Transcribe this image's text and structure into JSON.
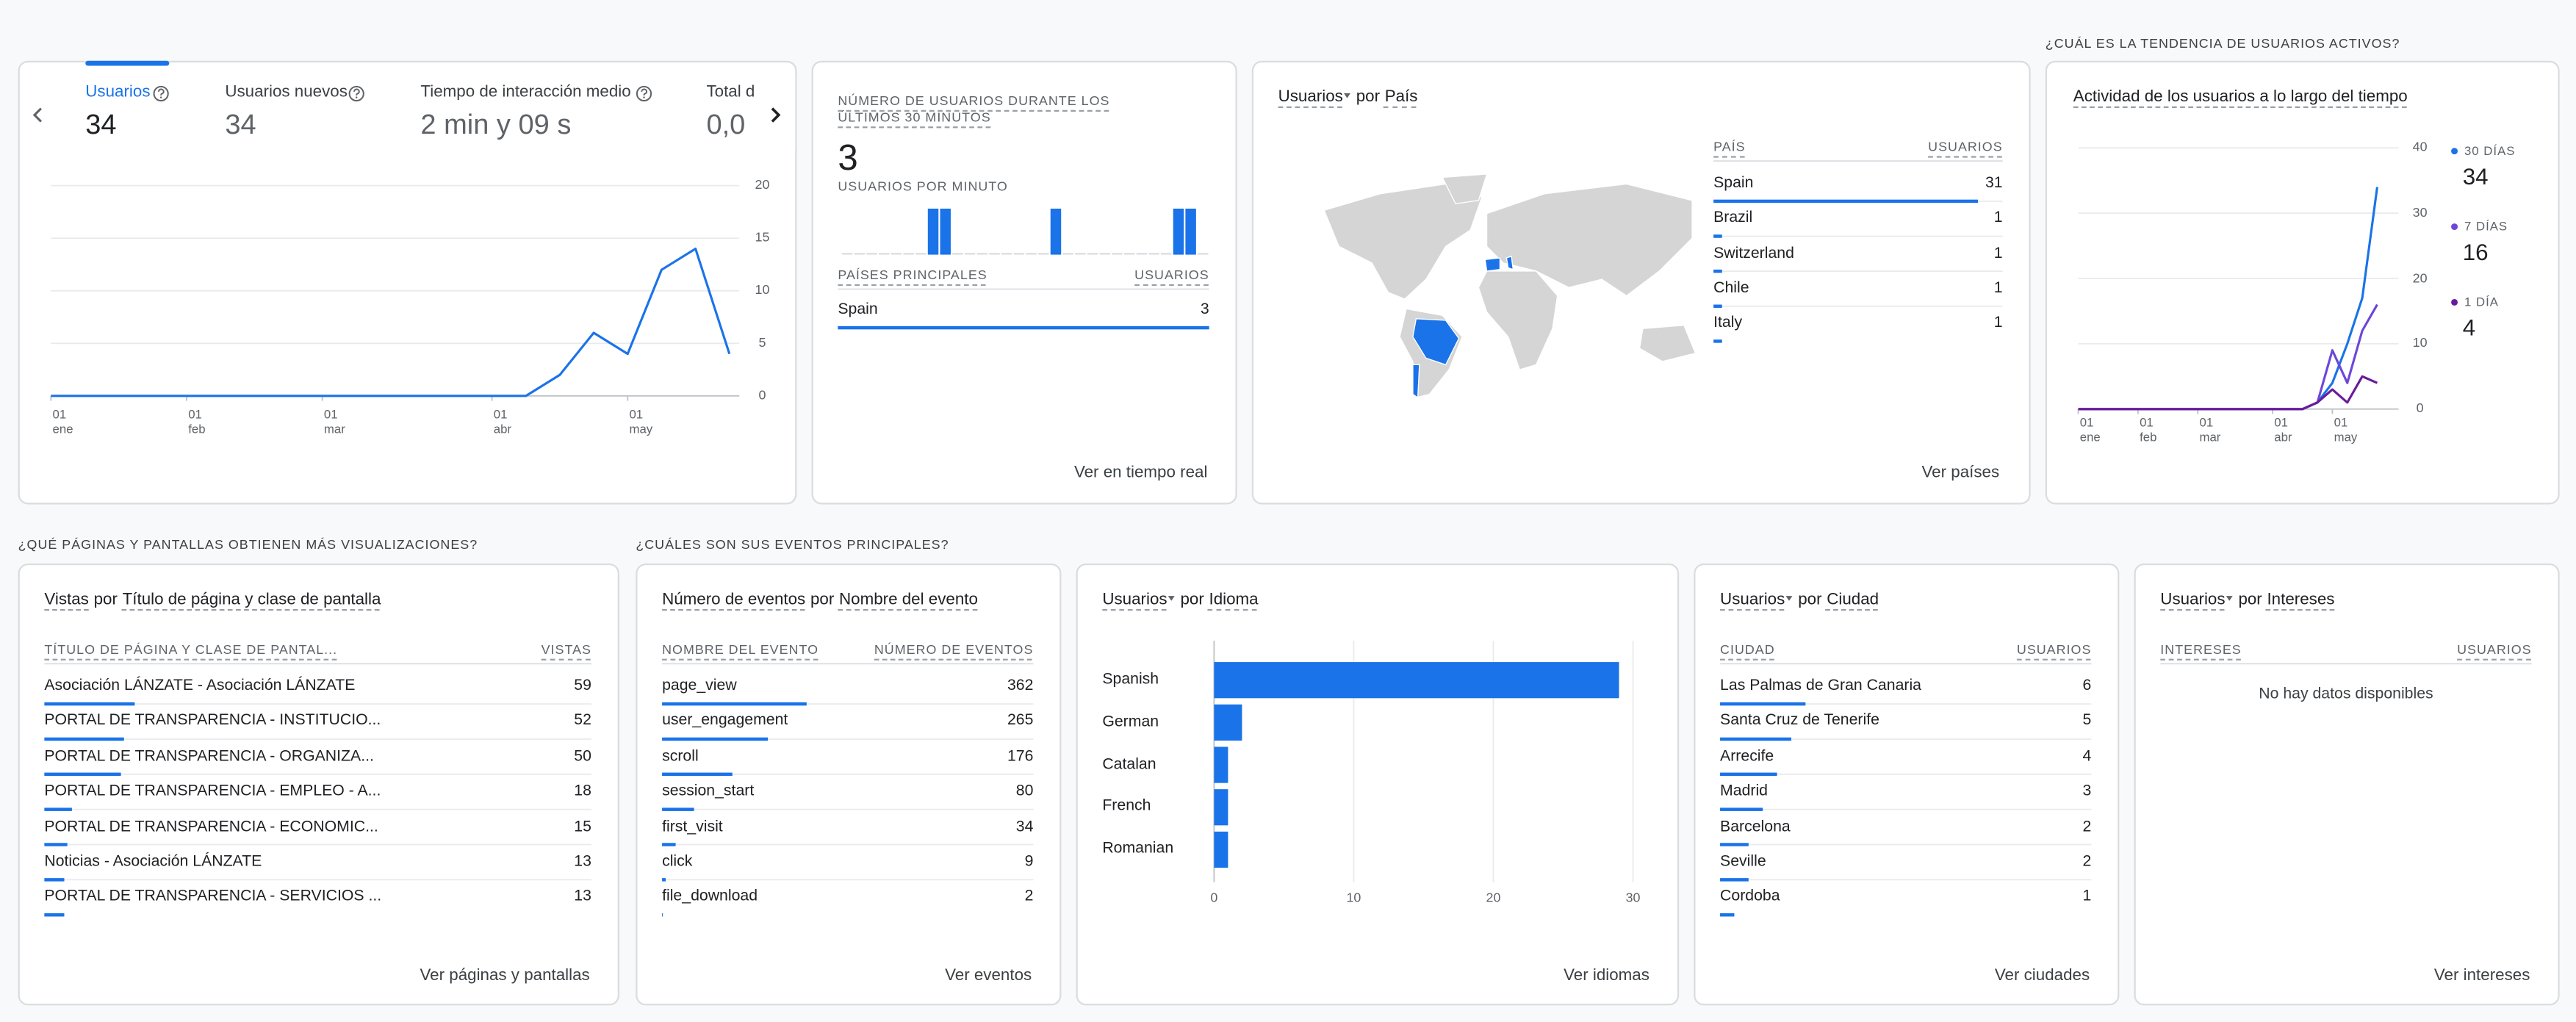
{
  "overview": {
    "tabs": [
      {
        "label": "Usuarios",
        "value": 34
      },
      {
        "label": "Usuarios nuevos",
        "value": 34
      },
      {
        "label": "Tiempo de interacción medio",
        "value": "2 min y 09 s"
      },
      {
        "label": "Total d",
        "value": "0,0"
      }
    ],
    "chart": {
      "type": "line",
      "categories": [
        "01\nene",
        null,
        null,
        null,
        "01\nfeb",
        null,
        null,
        null,
        "01\nmar",
        null,
        null,
        null,
        null,
        "01\nabr",
        null,
        null,
        null,
        "01\nmay",
        null,
        null,
        null
      ],
      "values": [
        0,
        0,
        0,
        0,
        0,
        0,
        0,
        0,
        0,
        0,
        0,
        0,
        0,
        0,
        0,
        2,
        6,
        4,
        12,
        14,
        4
      ],
      "color": "#1a73e8",
      "ylim": [
        0,
        20
      ],
      "yticks": [
        0,
        5,
        10,
        15,
        20
      ],
      "grid": true
    }
  },
  "realtime": {
    "title": "NÚMERO DE USUARIOS DURANTE LOS ÚLTIMOS 30 MINUTOS",
    "total": 3,
    "per_minute_label": "USUARIOS POR MINUTO",
    "per_minute": {
      "type": "bar",
      "color": "#1a73e8",
      "values": [
        0,
        0,
        0,
        0,
        0,
        0,
        0,
        1,
        1,
        0,
        0,
        0,
        0,
        0,
        0,
        0,
        0,
        1,
        0,
        0,
        0,
        0,
        0,
        0,
        0,
        0,
        0,
        1,
        1,
        0
      ]
    },
    "table": {
      "columns": [
        "PAÍSES PRINCIPALES",
        "USUARIOS"
      ],
      "rows": [
        [
          "Spain",
          3
        ]
      ]
    },
    "link": "Ver en tiempo real"
  },
  "countries": {
    "title": {
      "metric": "Usuarios",
      "menu": true,
      "connector": "por",
      "dimension": "País"
    },
    "table": {
      "columns": [
        "PAÍS",
        "USUARIOS"
      ],
      "rows": [
        [
          "Spain",
          31
        ],
        [
          "Brazil",
          1
        ],
        [
          "Switzerland",
          1
        ],
        [
          "Chile",
          1
        ],
        [
          "Italy",
          1
        ]
      ]
    },
    "link": "Ver países"
  },
  "trend": {
    "heading": "¿CUÁL ES LA TENDENCIA DE USUARIOS ACTIVOS?",
    "chart": {
      "type": "line",
      "title": "Actividad de los usuarios a lo largo del tiempo",
      "categories": [
        "01\nene",
        null,
        null,
        null,
        "01\nfeb",
        null,
        null,
        null,
        "01\nmar",
        null,
        null,
        null,
        null,
        "01\nabr",
        null,
        null,
        null,
        "01\nmay",
        null,
        null,
        null
      ],
      "series": [
        {
          "name": "30 DÍAS",
          "value": 34,
          "color": "#1a73e8",
          "values": [
            0,
            0,
            0,
            0,
            0,
            0,
            0,
            0,
            0,
            0,
            0,
            0,
            0,
            0,
            0,
            0,
            1,
            4,
            10,
            17,
            34
          ]
        },
        {
          "name": "7 DÍAS",
          "value": 16,
          "color": "#6c47d9",
          "values": [
            0,
            0,
            0,
            0,
            0,
            0,
            0,
            0,
            0,
            0,
            0,
            0,
            0,
            0,
            0,
            0,
            1,
            9,
            4,
            12,
            16
          ]
        },
        {
          "name": "1 DÍA",
          "value": 4,
          "color": "#6a1b9a",
          "values": [
            0,
            0,
            0,
            0,
            0,
            0,
            0,
            0,
            0,
            0,
            0,
            0,
            0,
            0,
            0,
            0,
            1,
            3,
            1,
            5,
            4
          ]
        }
      ],
      "ylim": [
        0,
        40
      ],
      "yticks": [
        0,
        10,
        20,
        30,
        40
      ],
      "grid": true
    }
  },
  "pages_heading": "¿QUÉ PÁGINAS Y PANTALLAS OBTIENEN MÁS VISUALIZACIONES?",
  "events_heading": "¿CUÁLES SON SUS EVENTOS PRINCIPALES?",
  "pages": {
    "title": {
      "metric": "Vistas",
      "menu": false,
      "connector": "por",
      "dimension": "Título de página y clase de pantalla"
    },
    "table": {
      "columns": [
        "TÍTULO DE PÁGINA Y CLASE DE PANTAL...",
        "VISTAS"
      ],
      "rows": [
        [
          "Asociación LÁNZATE - Asociación LÁNZATE",
          59
        ],
        [
          "PORTAL DE TRANSPARENCIA - INSTITUCIO...",
          52
        ],
        [
          "PORTAL DE TRANSPARENCIA - ORGANIZA...",
          50
        ],
        [
          "PORTAL DE TRANSPARENCIA - EMPLEO - A...",
          18
        ],
        [
          "PORTAL DE TRANSPARENCIA - ECONOMIC...",
          15
        ],
        [
          "Noticias - Asociación LÁNZATE",
          13
        ],
        [
          "PORTAL DE TRANSPARENCIA - SERVICIOS ...",
          13
        ]
      ]
    },
    "link": "Ver páginas y pantallas"
  },
  "events": {
    "title": {
      "metric": "Número de eventos",
      "menu": false,
      "connector": "por",
      "dimension": "Nombre del evento"
    },
    "table": {
      "columns": [
        "NOMBRE DEL EVENTO",
        "NÚMERO DE EVENTOS"
      ],
      "rows": [
        [
          "page_view",
          362
        ],
        [
          "user_engagement",
          265
        ],
        [
          "scroll",
          176
        ],
        [
          "session_start",
          80
        ],
        [
          "first_visit",
          34
        ],
        [
          "click",
          9
        ],
        [
          "file_download",
          2
        ]
      ]
    },
    "link": "Ver eventos"
  },
  "languages": {
    "title": {
      "metric": "Usuarios",
      "menu": true,
      "connector": "por",
      "dimension": "Idioma"
    },
    "chart": {
      "type": "bar",
      "orientation": "horizontal",
      "categories": [
        "Spanish",
        "German",
        "Catalan",
        "French",
        "Romanian"
      ],
      "values": [
        29,
        2,
        1,
        1,
        1
      ],
      "color": "#1a73e8",
      "xlim": [
        0,
        30
      ],
      "xticks": [
        0,
        10,
        20,
        30
      ],
      "grid": true
    },
    "link": "Ver idiomas"
  },
  "cities": {
    "title": {
      "metric": "Usuarios",
      "menu": true,
      "connector": "por",
      "dimension": "Ciudad"
    },
    "table": {
      "columns": [
        "CIUDAD",
        "USUARIOS"
      ],
      "rows": [
        [
          "Las Palmas de Gran Canaria",
          6
        ],
        [
          "Santa Cruz de Tenerife",
          5
        ],
        [
          "Arrecife",
          4
        ],
        [
          "Madrid",
          3
        ],
        [
          "Barcelona",
          2
        ],
        [
          "Seville",
          2
        ],
        [
          "Cordoba",
          1
        ]
      ]
    },
    "link": "Ver ciudades"
  },
  "interests": {
    "title": {
      "metric": "Usuarios",
      "menu": true,
      "connector": "por",
      "dimension": "Intereses"
    },
    "table": {
      "columns": [
        "INTERESES",
        "USUARIOS"
      ],
      "rows": []
    },
    "empty": "No hay datos disponibles",
    "link": "Ver intereses"
  }
}
